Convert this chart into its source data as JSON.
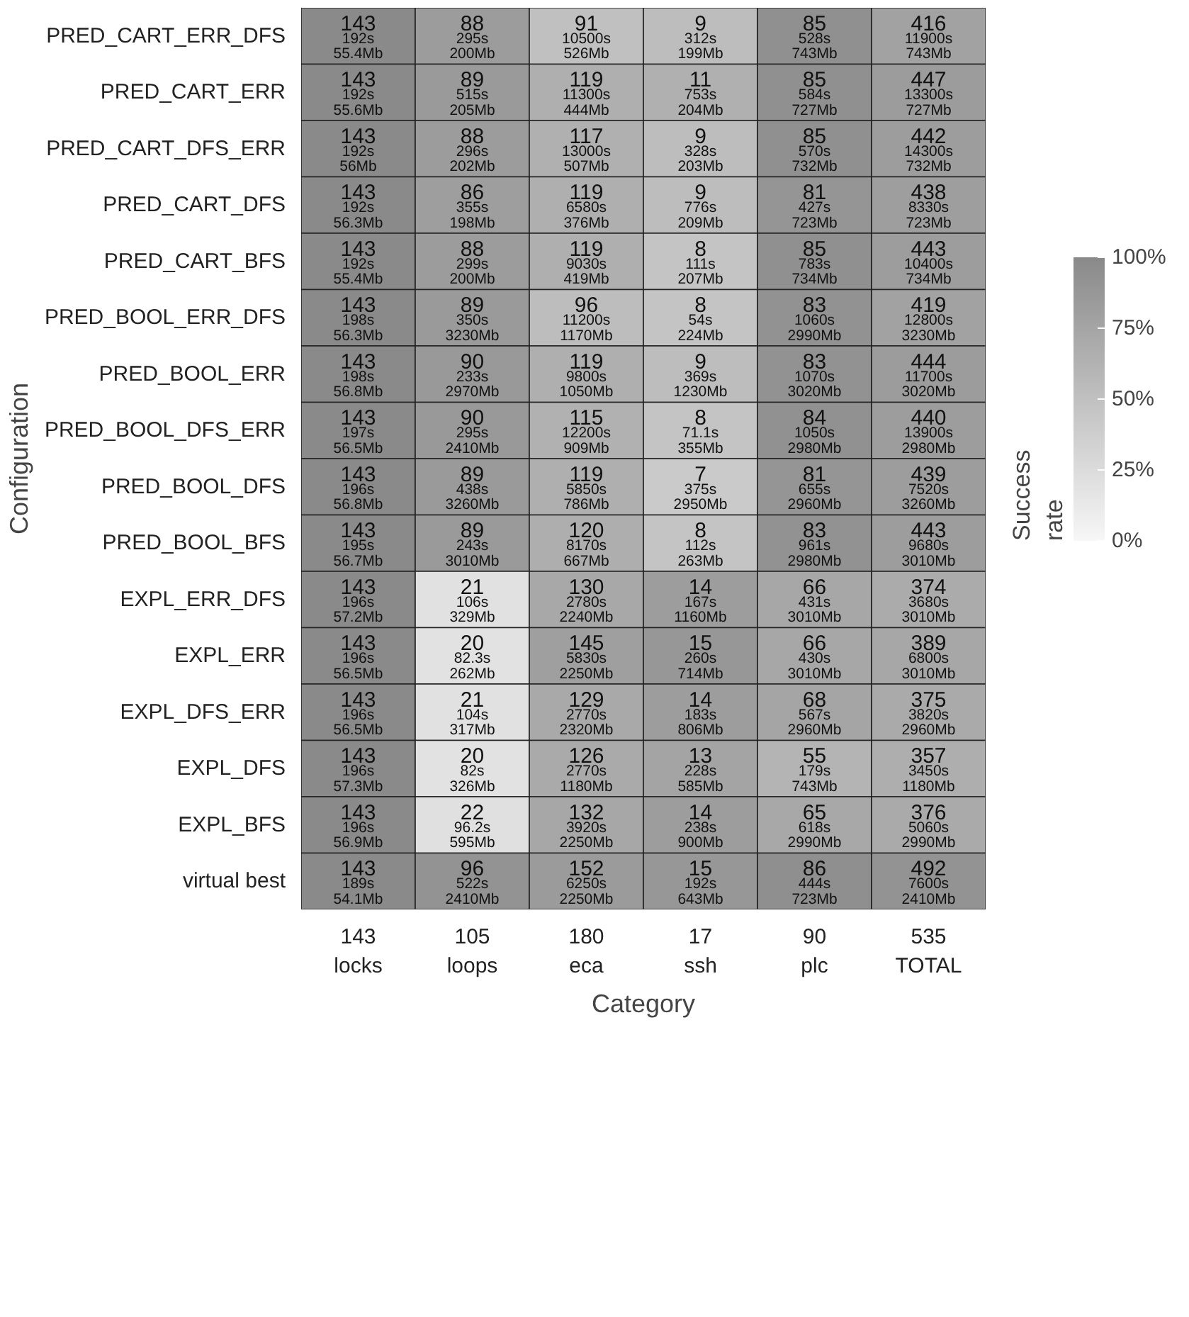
{
  "chart_data": {
    "type": "heatmap",
    "xlabel": "Category",
    "ylabel": "Configuration",
    "clabel": "Success\nrate",
    "categories": [
      "143\nlocks",
      "105\nloops",
      "180\neca",
      "17\nssh",
      "90\nplc",
      "535\nTOTAL"
    ],
    "y_categories": [
      "PRED_CART_ERR_DFS",
      "PRED_CART_ERR",
      "PRED_CART_DFS_ERR",
      "PRED_CART_DFS",
      "PRED_CART_BFS",
      "PRED_BOOL_ERR_DFS",
      "PRED_BOOL_ERR",
      "PRED_BOOL_DFS_ERR",
      "PRED_BOOL_DFS",
      "PRED_BOOL_BFS",
      "EXPL_ERR_DFS",
      "EXPL_ERR",
      "EXPL_DFS_ERR",
      "EXPL_DFS",
      "EXPL_BFS",
      "virtual best"
    ],
    "cells": [
      [
        100,
        83.8,
        50.6,
        52.9,
        94.4,
        77.8
      ],
      [
        100,
        84.8,
        66.1,
        64.7,
        94.4,
        83.6
      ],
      [
        100,
        83.8,
        65.0,
        52.9,
        94.4,
        82.6
      ],
      [
        100,
        81.9,
        66.1,
        52.9,
        90.0,
        81.9
      ],
      [
        100,
        83.8,
        66.1,
        47.1,
        94.4,
        82.8
      ],
      [
        100,
        84.8,
        53.3,
        47.1,
        92.2,
        78.3
      ],
      [
        100,
        85.7,
        66.1,
        52.9,
        92.2,
        83.0
      ],
      [
        100,
        85.7,
        63.9,
        47.1,
        93.3,
        82.2
      ],
      [
        100,
        84.8,
        66.1,
        41.2,
        90.0,
        82.1
      ],
      [
        100,
        84.8,
        66.7,
        47.1,
        92.2,
        82.8
      ],
      [
        100,
        20.0,
        72.2,
        82.4,
        73.3,
        69.9
      ],
      [
        100,
        19.0,
        80.6,
        88.2,
        73.3,
        72.7
      ],
      [
        100,
        20.0,
        71.7,
        82.4,
        75.6,
        70.1
      ],
      [
        100,
        19.0,
        70.0,
        76.5,
        61.1,
        66.7
      ],
      [
        100,
        21.0,
        73.3,
        82.4,
        72.2,
        70.3
      ],
      [
        100,
        91.4,
        84.4,
        88.2,
        95.6,
        92.0
      ]
    ],
    "cell_labels": [
      [
        "143\n192s\n55.4Mb",
        "88\n295s\n200Mb",
        "91\n10500s\n526Mb",
        "9\n312s\n199Mb",
        "85\n528s\n743Mb",
        "416\n11900s\n743Mb"
      ],
      [
        "143\n192s\n55.6Mb",
        "89\n515s\n205Mb",
        "119\n11300s\n444Mb",
        "11\n753s\n204Mb",
        "85\n584s\n727Mb",
        "447\n13300s\n727Mb"
      ],
      [
        "143\n192s\n56Mb",
        "88\n296s\n202Mb",
        "117\n13000s\n507Mb",
        "9\n328s\n203Mb",
        "85\n570s\n732Mb",
        "442\n14300s\n732Mb"
      ],
      [
        "143\n192s\n56.3Mb",
        "86\n355s\n198Mb",
        "119\n6580s\n376Mb",
        "9\n776s\n209Mb",
        "81\n427s\n723Mb",
        "438\n8330s\n723Mb"
      ],
      [
        "143\n192s\n55.4Mb",
        "88\n299s\n200Mb",
        "119\n9030s\n419Mb",
        "8\n111s\n207Mb",
        "85\n783s\n734Mb",
        "443\n10400s\n734Mb"
      ],
      [
        "143\n198s\n56.3Mb",
        "89\n350s\n3230Mb",
        "96\n11200s\n1170Mb",
        "8\n54s\n224Mb",
        "83\n1060s\n2990Mb",
        "419\n12800s\n3230Mb"
      ],
      [
        "143\n198s\n56.8Mb",
        "90\n233s\n2970Mb",
        "119\n9800s\n1050Mb",
        "9\n369s\n1230Mb",
        "83\n1070s\n3020Mb",
        "444\n11700s\n3020Mb"
      ],
      [
        "143\n197s\n56.5Mb",
        "90\n295s\n2410Mb",
        "115\n12200s\n909Mb",
        "8\n71.1s\n355Mb",
        "84\n1050s\n2980Mb",
        "440\n13900s\n2980Mb"
      ],
      [
        "143\n196s\n56.8Mb",
        "89\n438s\n3260Mb",
        "119\n5850s\n786Mb",
        "7\n375s\n2950Mb",
        "81\n655s\n2960Mb",
        "439\n7520s\n3260Mb"
      ],
      [
        "143\n195s\n56.7Mb",
        "89\n243s\n3010Mb",
        "120\n8170s\n667Mb",
        "8\n112s\n263Mb",
        "83\n961s\n2980Mb",
        "443\n9680s\n3010Mb"
      ],
      [
        "143\n196s\n57.2Mb",
        "21\n106s\n329Mb",
        "130\n2780s\n2240Mb",
        "14\n167s\n1160Mb",
        "66\n431s\n3010Mb",
        "374\n3680s\n3010Mb"
      ],
      [
        "143\n196s\n56.5Mb",
        "20\n82.3s\n262Mb",
        "145\n5830s\n2250Mb",
        "15\n260s\n714Mb",
        "66\n430s\n3010Mb",
        "389\n6800s\n3010Mb"
      ],
      [
        "143\n196s\n56.5Mb",
        "21\n104s\n317Mb",
        "129\n2770s\n2320Mb",
        "14\n183s\n806Mb",
        "68\n567s\n2960Mb",
        "375\n3820s\n2960Mb"
      ],
      [
        "143\n196s\n57.3Mb",
        "20\n82s\n326Mb",
        "126\n2770s\n1180Mb",
        "13\n228s\n585Mb",
        "55\n179s\n743Mb",
        "357\n3450s\n1180Mb"
      ],
      [
        "143\n196s\n56.9Mb",
        "22\n96.2s\n595Mb",
        "132\n3920s\n2250Mb",
        "14\n238s\n900Mb",
        "65\n618s\n2990Mb",
        "376\n5060s\n2990Mb"
      ],
      [
        "143\n189s\n54.1Mb",
        "96\n522s\n2410Mb",
        "152\n6250s\n2250Mb",
        "15\n192s\n643Mb",
        "86\n444s\n723Mb",
        "492\n7600s\n2410Mb"
      ]
    ],
    "clim": [
      0,
      100
    ],
    "cticks": [
      {
        "value": 0,
        "label": "0%"
      },
      {
        "value": 25,
        "label": "25%"
      },
      {
        "value": 50,
        "label": "50%"
      },
      {
        "value": 75,
        "label": "75%"
      },
      {
        "value": 100,
        "label": "100%"
      }
    ]
  }
}
